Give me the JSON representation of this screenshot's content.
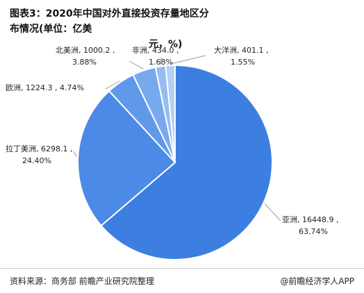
{
  "title_line1": "图表3：2020年中国对外直接投资存量地区分布情况(单位：亿美",
  "title_line2": "元，%)",
  "footer": {
    "source": "资料来源：商务部 前瞻产业研究院整理",
    "brand": "@前瞻经济学人APP"
  },
  "chart_data": {
    "type": "pie",
    "title": "图表3：2020年中国对外直接投资存量地区分布情况(单位：亿美元，%)",
    "slices": [
      {
        "name": "亚洲",
        "value": 16448.9,
        "percent": "63.74%",
        "label_line1": "亚洲, 16448.9 ,",
        "label_line2": "63.74%",
        "color": "#3d7fe0"
      },
      {
        "name": "拉丁美洲",
        "value": 6298.1,
        "percent": "24.40%",
        "label_line1": "拉丁美洲, 6298.1 ,",
        "label_line2": "24.40%",
        "color": "#4b8ae6"
      },
      {
        "name": "欧洲",
        "value": 1224.3,
        "percent": "4.74%",
        "label_line1": "欧洲, 1224.3 , 4.74%",
        "label_line2": "",
        "color": "#6199ea"
      },
      {
        "name": "北美洲",
        "value": 1000.2,
        "percent": "3.88%",
        "label_line1": "北美洲, 1000.2 ,",
        "label_line2": "3.88%",
        "color": "#78a9ee"
      },
      {
        "name": "非洲",
        "value": 434.0,
        "percent": "1.68%",
        "label_line1": "非洲, 434.0 ,",
        "label_line2": "1.68%",
        "color": "#95bdf2"
      },
      {
        "name": "大洋洲",
        "value": 401.1,
        "percent": "1.55%",
        "label_line1": "大洋洲, 401.1 ,",
        "label_line2": "1.55%",
        "color": "#b3d0f6"
      }
    ]
  }
}
